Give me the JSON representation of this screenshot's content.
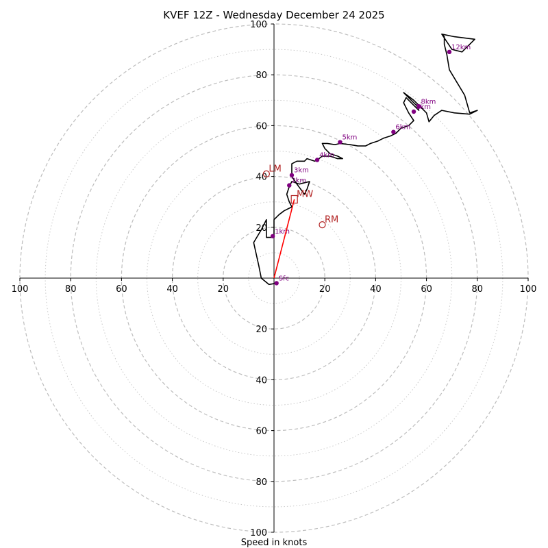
{
  "chart_data": {
    "type": "scatter",
    "subtype": "hodograph",
    "title": "KVEF 12Z - Wednesday December 24 2025",
    "xlabel": "Speed in knots",
    "ylabel": "",
    "units": "knots",
    "xlim": [
      -100,
      100
    ],
    "ylim": [
      -100,
      100
    ],
    "rings_dashed": [
      20,
      40,
      60,
      80,
      100
    ],
    "rings_dotted": [
      10,
      30,
      50,
      70,
      90
    ],
    "x_tick_labels": [
      "100",
      "80",
      "60",
      "40",
      "20",
      "20",
      "40",
      "60",
      "80",
      "100"
    ],
    "y_tick_labels": [
      "100",
      "80",
      "60",
      "40",
      "20",
      "20",
      "40",
      "60",
      "80",
      "100"
    ],
    "x_tick_values": [
      -100,
      -80,
      -60,
      -40,
      -20,
      20,
      40,
      60,
      80,
      100
    ],
    "y_tick_values": [
      100,
      80,
      60,
      40,
      20,
      -20,
      -40,
      -60,
      -80,
      -100
    ],
    "trace": {
      "name": "wind profile",
      "color": "#000000",
      "points": [
        [
          1,
          -2
        ],
        [
          -2,
          -2.5
        ],
        [
          -5,
          0
        ],
        [
          -6,
          5
        ],
        [
          -8,
          14
        ],
        [
          -5,
          19
        ],
        [
          -3,
          23
        ],
        [
          -3,
          16
        ],
        [
          0,
          16
        ],
        [
          0,
          19
        ],
        [
          0,
          23
        ],
        [
          2,
          25
        ],
        [
          4,
          26.5
        ],
        [
          7,
          28
        ],
        [
          6,
          30
        ],
        [
          5,
          33
        ],
        [
          6,
          36
        ],
        [
          7,
          38
        ],
        [
          10,
          37
        ],
        [
          14,
          38
        ],
        [
          13,
          35
        ],
        [
          12,
          33
        ],
        [
          9,
          37
        ],
        [
          7,
          40
        ],
        [
          7,
          42
        ],
        [
          7,
          45
        ],
        [
          9,
          46
        ],
        [
          12,
          46
        ],
        [
          13,
          47
        ],
        [
          16,
          46
        ],
        [
          17,
          46.5
        ],
        [
          19,
          48
        ],
        [
          22,
          48
        ],
        [
          25,
          47
        ],
        [
          27,
          47
        ],
        [
          25,
          48
        ],
        [
          22,
          49
        ],
        [
          20,
          51
        ],
        [
          19,
          53
        ],
        [
          21,
          53
        ],
        [
          24,
          52.5
        ],
        [
          26,
          53
        ],
        [
          30,
          52.5
        ],
        [
          33,
          52
        ],
        [
          36,
          52
        ],
        [
          38,
          53
        ],
        [
          41,
          54
        ],
        [
          43,
          55
        ],
        [
          46,
          56
        ],
        [
          48,
          57
        ],
        [
          50,
          59
        ],
        [
          53,
          60
        ],
        [
          55,
          62
        ],
        [
          53,
          65
        ],
        [
          51,
          69
        ],
        [
          52,
          71
        ],
        [
          55,
          68
        ],
        [
          57,
          66
        ],
        [
          56,
          68
        ],
        [
          54,
          70
        ],
        [
          51,
          73
        ],
        [
          55,
          70
        ],
        [
          58,
          67
        ],
        [
          60,
          65
        ],
        [
          61,
          61.5
        ],
        [
          63,
          64
        ],
        [
          66,
          66
        ],
        [
          71,
          65
        ],
        [
          77,
          64.5
        ],
        [
          80,
          66
        ],
        [
          77,
          65
        ],
        [
          75,
          72
        ],
        [
          72,
          77
        ],
        [
          69,
          82
        ],
        [
          68,
          88
        ],
        [
          67,
          92
        ],
        [
          67,
          95
        ],
        [
          66,
          96
        ],
        [
          70,
          90
        ],
        [
          74,
          89
        ],
        [
          79,
          94
        ],
        [
          71,
          95
        ],
        [
          66,
          96
        ]
      ]
    },
    "height_markers": {
      "color": "#800080",
      "labels": [
        "Sfc",
        "1km",
        "2km",
        "3km",
        "4km",
        "5km",
        "6km",
        "7km",
        "8km",
        "12km"
      ],
      "u": [
        1,
        -0.5,
        6,
        7,
        17,
        26,
        47,
        55,
        57,
        69
      ],
      "v": [
        -2,
        16.5,
        36.5,
        40.5,
        46.5,
        53.5,
        57.5,
        65.5,
        67.5,
        89
      ]
    },
    "storm_motion": {
      "color": "#b22222",
      "vector_color": "#ff0000",
      "vector": [
        [
          0,
          0
        ],
        [
          8,
          31
        ]
      ],
      "points": [
        {
          "label": "LM",
          "u": -3,
          "v": 41,
          "marker": "circle"
        },
        {
          "label": "MW",
          "u": 8,
          "v": 31,
          "marker": "square"
        },
        {
          "label": "RM",
          "u": 19,
          "v": 21,
          "marker": "circle"
        }
      ]
    }
  }
}
